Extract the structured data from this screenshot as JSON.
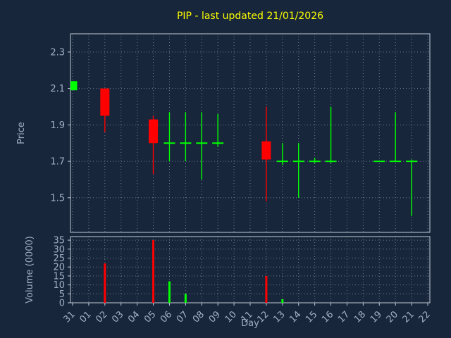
{
  "colors": {
    "background": "#17263b",
    "title": "#ffff00",
    "up": "#00ff00",
    "down": "#ff0000",
    "axis_text": "#a3aec6",
    "frame": "#c3cad6",
    "grid": "#7d8ca3"
  },
  "chart_data": {
    "type": "candlestick",
    "title": "PIP - last updated 21/01/2026",
    "xlabel": "Day",
    "legend": "none",
    "grid": "dotted",
    "price_axis": {
      "label": "Price",
      "ticks": [
        1.5,
        1.7,
        1.9,
        2.1,
        2.3
      ],
      "ylim": [
        1.31,
        2.4
      ]
    },
    "volume_axis": {
      "label": "Volume (0000)",
      "ticks": [
        0,
        5,
        10,
        15,
        20,
        25,
        30,
        35
      ],
      "ylim": [
        0,
        37
      ]
    },
    "day_labels": [
      "31",
      "01",
      "02",
      "03",
      "04",
      "05",
      "06",
      "07",
      "08",
      "09",
      "10",
      "11",
      "12",
      "13",
      "14",
      "15",
      "16",
      "17",
      "18",
      "19",
      "20",
      "21",
      "22"
    ],
    "candles": [
      {
        "day": "31",
        "open": 2.09,
        "high": 2.14,
        "low": 2.09,
        "close": 2.14,
        "volume": 0
      },
      {
        "day": "02",
        "open": 2.1,
        "high": 2.1,
        "low": 1.86,
        "close": 1.95,
        "volume": 22
      },
      {
        "day": "05",
        "open": 1.93,
        "high": 1.95,
        "low": 1.63,
        "close": 1.8,
        "volume": 35
      },
      {
        "day": "06",
        "open": 1.8,
        "high": 1.97,
        "low": 1.7,
        "close": 1.8,
        "volume": 12
      },
      {
        "day": "07",
        "open": 1.8,
        "high": 1.97,
        "low": 1.7,
        "close": 1.8,
        "volume": 5
      },
      {
        "day": "08",
        "open": 1.8,
        "high": 1.97,
        "low": 1.6,
        "close": 1.8,
        "volume": 0
      },
      {
        "day": "09",
        "open": 1.8,
        "high": 1.96,
        "low": 1.78,
        "close": 1.8,
        "volume": 0
      },
      {
        "day": "12",
        "open": 1.81,
        "high": 2.0,
        "low": 1.48,
        "close": 1.71,
        "volume": 15
      },
      {
        "day": "13",
        "open": 1.7,
        "high": 1.8,
        "low": 1.68,
        "close": 1.7,
        "volume": 2
      },
      {
        "day": "14",
        "open": 1.7,
        "high": 1.8,
        "low": 1.5,
        "close": 1.7,
        "volume": 0
      },
      {
        "day": "15",
        "open": 1.7,
        "high": 1.72,
        "low": 1.69,
        "close": 1.7,
        "volume": 0
      },
      {
        "day": "16",
        "open": 1.7,
        "high": 2.0,
        "low": 1.69,
        "close": 1.7,
        "volume": 0
      },
      {
        "day": "19",
        "open": 1.7,
        "high": 1.7,
        "low": 1.7,
        "close": 1.7,
        "volume": 0
      },
      {
        "day": "20",
        "open": 1.7,
        "high": 1.97,
        "low": 1.7,
        "close": 1.7,
        "volume": 0
      },
      {
        "day": "21",
        "open": 1.7,
        "high": 1.71,
        "low": 1.4,
        "close": 1.7,
        "volume": 0
      }
    ]
  }
}
